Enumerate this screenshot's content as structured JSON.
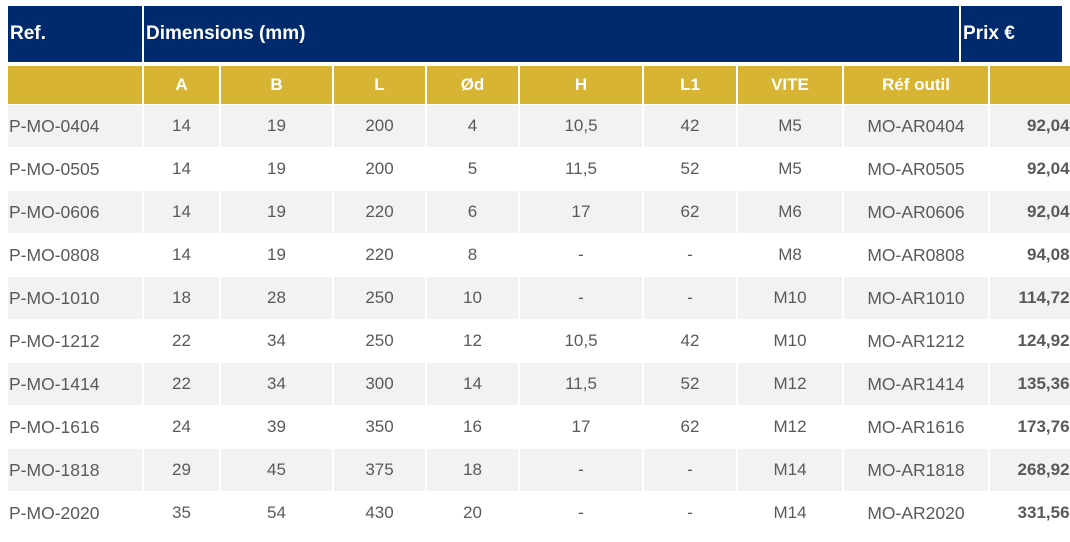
{
  "header": {
    "ref": "Ref.",
    "dimensions": "Dimensions (mm)",
    "prix": "Prix €"
  },
  "subheader": [
    "A",
    "B",
    "L",
    "Ød",
    "H",
    "L1",
    "VITE",
    "Réf outil"
  ],
  "currency": "€",
  "colors": {
    "header_navy": "#002a6e",
    "subheader_gold": "#d7b434",
    "row_shade": "#f2f2f2",
    "text_gray": "#595959"
  },
  "rows": [
    {
      "ref": "P-MO-0404",
      "a": "14",
      "b": "19",
      "l": "200",
      "d": "4",
      "h": "10,5",
      "l1": "42",
      "vite": "M5",
      "ref_outil": "MO-AR0404",
      "prix": "92,04"
    },
    {
      "ref": "P-MO-0505",
      "a": "14",
      "b": "19",
      "l": "200",
      "d": "5",
      "h": "11,5",
      "l1": "52",
      "vite": "M5",
      "ref_outil": "MO-AR0505",
      "prix": "92,04"
    },
    {
      "ref": "P-MO-0606",
      "a": "14",
      "b": "19",
      "l": "220",
      "d": "6",
      "h": "17",
      "l1": "62",
      "vite": "M6",
      "ref_outil": "MO-AR0606",
      "prix": "92,04"
    },
    {
      "ref": "P-MO-0808",
      "a": "14",
      "b": "19",
      "l": "220",
      "d": "8",
      "h": "-",
      "l1": "-",
      "vite": "M8",
      "ref_outil": "MO-AR0808",
      "prix": "94,08"
    },
    {
      "ref": "P-MO-1010",
      "a": "18",
      "b": "28",
      "l": "250",
      "d": "10",
      "h": "-",
      "l1": "-",
      "vite": "M10",
      "ref_outil": "MO-AR1010",
      "prix": "114,72"
    },
    {
      "ref": "P-MO-1212",
      "a": "22",
      "b": "34",
      "l": "250",
      "d": "12",
      "h": "10,5",
      "l1": "42",
      "vite": "M10",
      "ref_outil": "MO-AR1212",
      "prix": "124,92"
    },
    {
      "ref": "P-MO-1414",
      "a": "22",
      "b": "34",
      "l": "300",
      "d": "14",
      "h": "11,5",
      "l1": "52",
      "vite": "M12",
      "ref_outil": "MO-AR1414",
      "prix": "135,36"
    },
    {
      "ref": "P-MO-1616",
      "a": "24",
      "b": "39",
      "l": "350",
      "d": "16",
      "h": "17",
      "l1": "62",
      "vite": "M12",
      "ref_outil": "MO-AR1616",
      "prix": "173,76"
    },
    {
      "ref": "P-MO-1818",
      "a": "29",
      "b": "45",
      "l": "375",
      "d": "18",
      "h": "-",
      "l1": "-",
      "vite": "M14",
      "ref_outil": "MO-AR1818",
      "prix": "268,92"
    },
    {
      "ref": "P-MO-2020",
      "a": "35",
      "b": "54",
      "l": "430",
      "d": "20",
      "h": "-",
      "l1": "-",
      "vite": "M14",
      "ref_outil": "MO-AR2020",
      "prix": "331,56"
    }
  ]
}
